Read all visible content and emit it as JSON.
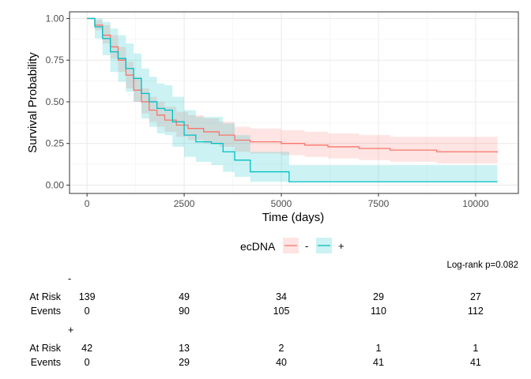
{
  "chart_data": {
    "type": "line",
    "title": "",
    "xlabel": "Time (days)",
    "ylabel": "Survival Probability",
    "xlim": [
      -450,
      11100
    ],
    "ylim": [
      -0.05,
      1.04
    ],
    "x_ticks": [
      0,
      2500,
      5000,
      7500,
      10000
    ],
    "x_tick_labels": [
      "0",
      "2500",
      "5000",
      "7500",
      "10000"
    ],
    "y_ticks": [
      0,
      0.25,
      0.5,
      0.75,
      1
    ],
    "y_tick_labels": [
      "0.00",
      "0.25",
      "0.50",
      "0.75",
      "1.00"
    ],
    "grid": true,
    "legend": {
      "title": "ecDNA",
      "position": "bottom"
    },
    "series": [
      {
        "name": "-",
        "color": "#F8766D",
        "x": [
          0,
          200,
          400,
          600,
          800,
          1000,
          1200,
          1400,
          1600,
          1800,
          2000,
          2300,
          2600,
          3000,
          3400,
          3800,
          4200,
          5000,
          5600,
          6200,
          7000,
          7800,
          9000,
          10560
        ],
        "y": [
          1.0,
          0.96,
          0.9,
          0.83,
          0.75,
          0.66,
          0.57,
          0.5,
          0.45,
          0.42,
          0.39,
          0.36,
          0.34,
          0.32,
          0.3,
          0.27,
          0.26,
          0.25,
          0.24,
          0.23,
          0.22,
          0.21,
          0.2,
          0.195
        ],
        "lower": [
          1.0,
          0.93,
          0.85,
          0.76,
          0.68,
          0.58,
          0.5,
          0.43,
          0.38,
          0.35,
          0.32,
          0.29,
          0.27,
          0.25,
          0.23,
          0.2,
          0.19,
          0.18,
          0.17,
          0.16,
          0.15,
          0.14,
          0.13,
          0.12
        ],
        "upper": [
          1.0,
          0.99,
          0.96,
          0.9,
          0.83,
          0.74,
          0.65,
          0.58,
          0.53,
          0.5,
          0.47,
          0.44,
          0.42,
          0.4,
          0.38,
          0.35,
          0.34,
          0.33,
          0.32,
          0.31,
          0.3,
          0.29,
          0.29,
          0.28
        ]
      },
      {
        "name": "+",
        "color": "#00BFC4",
        "x": [
          0,
          200,
          400,
          600,
          800,
          1000,
          1200,
          1400,
          1600,
          1800,
          2000,
          2200,
          2500,
          2800,
          3200,
          3500,
          3800,
          4200,
          5200,
          10560
        ],
        "y": [
          1.0,
          0.95,
          0.88,
          0.8,
          0.76,
          0.7,
          0.64,
          0.55,
          0.5,
          0.46,
          0.45,
          0.38,
          0.3,
          0.26,
          0.25,
          0.2,
          0.15,
          0.08,
          0.02,
          0.02
        ],
        "lower": [
          1.0,
          0.88,
          0.78,
          0.68,
          0.62,
          0.56,
          0.5,
          0.4,
          0.35,
          0.31,
          0.3,
          0.23,
          0.17,
          0.14,
          0.12,
          0.08,
          0.05,
          0.02,
          0.02,
          0.02
        ],
        "upper": [
          1.0,
          1.0,
          0.98,
          0.94,
          0.9,
          0.85,
          0.79,
          0.7,
          0.65,
          0.61,
          0.6,
          0.53,
          0.45,
          0.41,
          0.41,
          0.37,
          0.3,
          0.2,
          0.12,
          0.12
        ]
      }
    ],
    "annotation": "Log-rank p=0.082",
    "risk_table": {
      "times": [
        0,
        2500,
        5000,
        7500,
        10000
      ],
      "groups": [
        {
          "label": "-",
          "at_risk_label": "At Risk",
          "events_label": "Events",
          "at_risk": [
            139,
            49,
            34,
            29,
            27
          ],
          "events": [
            0,
            90,
            105,
            110,
            112
          ]
        },
        {
          "label": "+",
          "at_risk_label": "At Risk",
          "events_label": "Events",
          "at_risk": [
            42,
            13,
            2,
            1,
            1
          ],
          "events": [
            0,
            29,
            40,
            41,
            41
          ]
        }
      ]
    }
  }
}
